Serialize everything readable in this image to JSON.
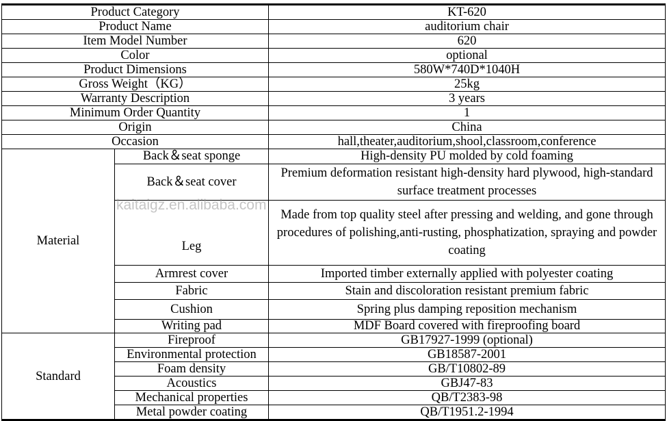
{
  "general": [
    {
      "label": "Product Category",
      "value": "KT-620"
    },
    {
      "label": "Product Name",
      "value": "auditorium chair"
    },
    {
      "label": "Item Model Number",
      "value": "620"
    },
    {
      "label": "Color",
      "value": "optional"
    },
    {
      "label": "Product Dimensions",
      "value": "580W*740D*1040H"
    },
    {
      "label": "Gross Weight（KG）",
      "value": "25kg"
    },
    {
      "label": "Warranty Description",
      "value": "3 years"
    },
    {
      "label": "Minimum Order Quantity",
      "value": "1"
    },
    {
      "label": "Origin",
      "value": "China"
    },
    {
      "label": "Occasion",
      "value": "hall,theater,auditorium,shool,classroom,conference"
    }
  ],
  "material": {
    "group": "Material",
    "items": [
      {
        "label": "Back＆seat sponge",
        "value": "High-density PU molded by cold foaming"
      },
      {
        "label": "Back＆seat cover",
        "value": "Premium deformation resistant high-density hard plywood, high-standard surface treatment processes"
      },
      {
        "label": "Leg",
        "value": "Made from top quality steel after pressing and welding, and gone through procedures of polishing,anti-rusting, phosphatization, spraying and powder coating"
      },
      {
        "label": "Armrest cover",
        "value": "Imported timber externally applied with polyester coating"
      },
      {
        "label": "Fabric",
        "value": "Stain and discoloration resistant premium fabric"
      },
      {
        "label": "Cushion",
        "value": "Spring plus damping reposition mechanism"
      },
      {
        "label": "Writing pad",
        "value": "MDF Board covered with fireproofing board"
      }
    ]
  },
  "standard": {
    "group": "Standard",
    "items": [
      {
        "label": "Fireproof",
        "value": "GB17927-1999 (optional)"
      },
      {
        "label": "Environmental protection",
        "value": "GB18587-2001"
      },
      {
        "label": "Foam density",
        "value": "GB/T10802-89"
      },
      {
        "label": "Acoustics",
        "value": "GBJ47-83"
      },
      {
        "label": "Mechanical properties",
        "value": "QB/T2383-98"
      },
      {
        "label": "Metal powder coating",
        "value": "QB/T1951.2-1994"
      }
    ]
  },
  "watermark": "kaitaigz.en.alibaba.com"
}
